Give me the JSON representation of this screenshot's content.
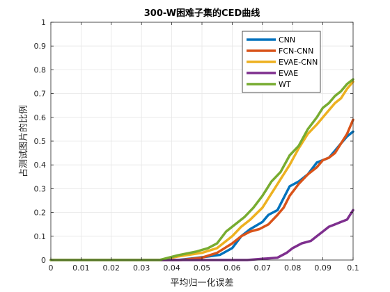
{
  "chart_data": {
    "type": "line",
    "title": "300-W困难子集的CED曲线",
    "xlabel": "平均归一化误差",
    "ylabel": "占测试图片的比例",
    "xlim": [
      0,
      0.1
    ],
    "ylim": [
      0,
      1
    ],
    "xticks": [
      "0",
      "0.01",
      "0.02",
      "0.03",
      "0.04",
      "0.05",
      "0.06",
      "0.07",
      "0.08",
      "0.09",
      "0.1"
    ],
    "yticks": [
      "0",
      "0.1",
      "0.2",
      "0.3",
      "0.4",
      "0.5",
      "0.6",
      "0.7",
      "0.8",
      "0.9",
      "1"
    ],
    "grid": true,
    "legend_position": "top-right",
    "series": [
      {
        "name": "CNN",
        "color": "#0072BD",
        "points": [
          [
            0,
            0
          ],
          [
            0.042,
            0
          ],
          [
            0.047,
            0.007
          ],
          [
            0.052,
            0.015
          ],
          [
            0.056,
            0.022
          ],
          [
            0.06,
            0.05
          ],
          [
            0.063,
            0.1
          ],
          [
            0.066,
            0.13
          ],
          [
            0.07,
            0.16
          ],
          [
            0.072,
            0.19
          ],
          [
            0.075,
            0.21
          ],
          [
            0.077,
            0.26
          ],
          [
            0.079,
            0.31
          ],
          [
            0.082,
            0.33
          ],
          [
            0.085,
            0.36
          ],
          [
            0.088,
            0.41
          ],
          [
            0.09,
            0.42
          ],
          [
            0.092,
            0.43
          ],
          [
            0.094,
            0.46
          ],
          [
            0.096,
            0.49
          ],
          [
            0.098,
            0.52
          ],
          [
            0.1,
            0.54
          ]
        ]
      },
      {
        "name": "FCN-CNN",
        "color": "#D95319",
        "points": [
          [
            0,
            0
          ],
          [
            0.043,
            0
          ],
          [
            0.05,
            0.01
          ],
          [
            0.055,
            0.03
          ],
          [
            0.06,
            0.07
          ],
          [
            0.063,
            0.1
          ],
          [
            0.066,
            0.12
          ],
          [
            0.069,
            0.13
          ],
          [
            0.072,
            0.15
          ],
          [
            0.075,
            0.19
          ],
          [
            0.077,
            0.22
          ],
          [
            0.079,
            0.27
          ],
          [
            0.082,
            0.32
          ],
          [
            0.085,
            0.36
          ],
          [
            0.088,
            0.39
          ],
          [
            0.09,
            0.42
          ],
          [
            0.092,
            0.43
          ],
          [
            0.094,
            0.45
          ],
          [
            0.096,
            0.49
          ],
          [
            0.098,
            0.53
          ],
          [
            0.1,
            0.59
          ]
        ]
      },
      {
        "name": "EVAE-CNN",
        "color": "#EDB120",
        "points": [
          [
            0,
            0
          ],
          [
            0.036,
            0
          ],
          [
            0.042,
            0.015
          ],
          [
            0.05,
            0.03
          ],
          [
            0.055,
            0.05
          ],
          [
            0.06,
            0.1
          ],
          [
            0.063,
            0.14
          ],
          [
            0.066,
            0.17
          ],
          [
            0.07,
            0.22
          ],
          [
            0.072,
            0.26
          ],
          [
            0.074,
            0.3
          ],
          [
            0.077,
            0.36
          ],
          [
            0.079,
            0.4
          ],
          [
            0.082,
            0.47
          ],
          [
            0.085,
            0.53
          ],
          [
            0.088,
            0.57
          ],
          [
            0.09,
            0.6
          ],
          [
            0.092,
            0.63
          ],
          [
            0.094,
            0.66
          ],
          [
            0.096,
            0.68
          ],
          [
            0.098,
            0.72
          ],
          [
            0.1,
            0.75
          ]
        ]
      },
      {
        "name": "EVAE",
        "color": "#7E2F8E",
        "points": [
          [
            0,
            0
          ],
          [
            0.065,
            0
          ],
          [
            0.07,
            0.005
          ],
          [
            0.075,
            0.01
          ],
          [
            0.078,
            0.03
          ],
          [
            0.08,
            0.05
          ],
          [
            0.083,
            0.07
          ],
          [
            0.086,
            0.08
          ],
          [
            0.088,
            0.1
          ],
          [
            0.09,
            0.12
          ],
          [
            0.092,
            0.14
          ],
          [
            0.094,
            0.15
          ],
          [
            0.096,
            0.16
          ],
          [
            0.098,
            0.17
          ],
          [
            0.1,
            0.21
          ]
        ]
      },
      {
        "name": "WT",
        "color": "#77AC30",
        "points": [
          [
            0,
            0
          ],
          [
            0.036,
            0
          ],
          [
            0.042,
            0.02
          ],
          [
            0.048,
            0.035
          ],
          [
            0.052,
            0.05
          ],
          [
            0.055,
            0.07
          ],
          [
            0.058,
            0.12
          ],
          [
            0.061,
            0.15
          ],
          [
            0.064,
            0.18
          ],
          [
            0.067,
            0.22
          ],
          [
            0.07,
            0.27
          ],
          [
            0.073,
            0.33
          ],
          [
            0.076,
            0.37
          ],
          [
            0.079,
            0.44
          ],
          [
            0.082,
            0.48
          ],
          [
            0.085,
            0.55
          ],
          [
            0.088,
            0.6
          ],
          [
            0.09,
            0.64
          ],
          [
            0.092,
            0.66
          ],
          [
            0.094,
            0.69
          ],
          [
            0.096,
            0.71
          ],
          [
            0.098,
            0.74
          ],
          [
            0.1,
            0.76
          ]
        ]
      }
    ]
  }
}
